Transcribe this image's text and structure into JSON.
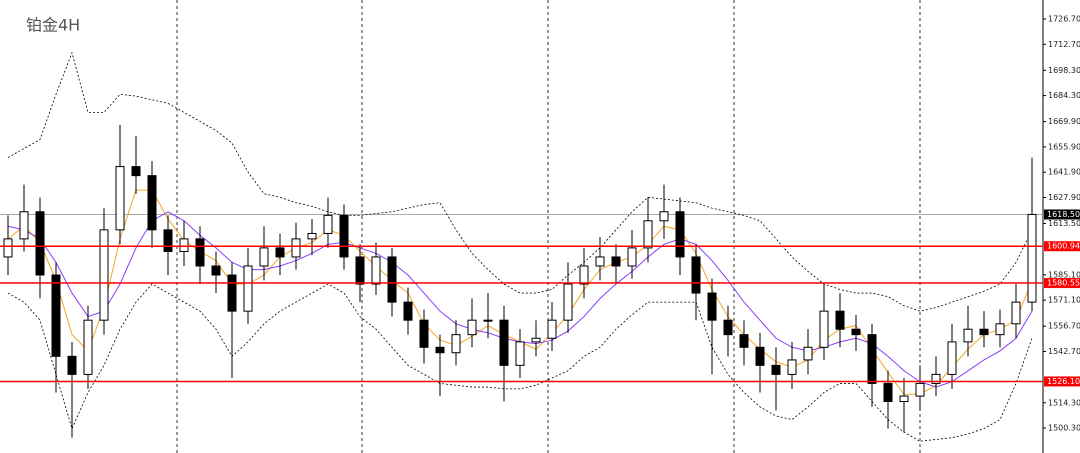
{
  "chart_data": {
    "type": "candlestick",
    "title": "铂金4H",
    "open": [
      1595,
      1605,
      1620,
      1585,
      1540,
      1530,
      1560,
      1610,
      1645,
      1640,
      1610,
      1598,
      1605,
      1590,
      1585,
      1565,
      1590,
      1600,
      1595,
      1605,
      1608,
      1618,
      1595,
      1580,
      1595,
      1570,
      1560,
      1545,
      1542,
      1552,
      1560,
      1560,
      1535,
      1548,
      1550,
      1560,
      1580,
      1590,
      1595,
      1590,
      1600,
      1615,
      1620,
      1595,
      1575,
      1560,
      1552,
      1545,
      1535,
      1530,
      1538,
      1545,
      1565,
      1555,
      1552,
      1525,
      1515,
      1518,
      1525,
      1530,
      1548,
      1555,
      1552,
      1558,
      1570
    ],
    "high": [
      1618,
      1635,
      1628,
      1592,
      1548,
      1568,
      1622,
      1668,
      1662,
      1648,
      1618,
      1615,
      1612,
      1598,
      1592,
      1600,
      1612,
      1608,
      1614,
      1616,
      1628,
      1624,
      1602,
      1603,
      1600,
      1578,
      1566,
      1552,
      1560,
      1572,
      1575,
      1568,
      1555,
      1560,
      1570,
      1592,
      1600,
      1606,
      1602,
      1610,
      1628,
      1635,
      1628,
      1602,
      1583,
      1568,
      1560,
      1553,
      1545,
      1548,
      1555,
      1580,
      1575,
      1563,
      1558,
      1532,
      1528,
      1535,
      1540,
      1558,
      1568,
      1565,
      1566,
      1580,
      1650
    ],
    "low": [
      1585,
      1598,
      1572,
      1520,
      1495,
      1522,
      1552,
      1602,
      1630,
      1600,
      1585,
      1590,
      1580,
      1575,
      1528,
      1558,
      1582,
      1585,
      1588,
      1596,
      1600,
      1588,
      1570,
      1574,
      1562,
      1552,
      1536,
      1518,
      1535,
      1545,
      1550,
      1515,
      1528,
      1540,
      1543,
      1553,
      1572,
      1582,
      1580,
      1583,
      1592,
      1605,
      1585,
      1560,
      1530,
      1540,
      1535,
      1520,
      1510,
      1522,
      1530,
      1538,
      1545,
      1543,
      1512,
      1500,
      1498,
      1510,
      1518,
      1522,
      1540,
      1545,
      1545,
      1550,
      1565
    ],
    "close": [
      1605,
      1620,
      1585,
      1540,
      1530,
      1560,
      1610,
      1645,
      1640,
      1610,
      1598,
      1605,
      1590,
      1585,
      1565,
      1590,
      1600,
      1595,
      1605,
      1608,
      1618,
      1595,
      1580,
      1595,
      1570,
      1560,
      1545,
      1542,
      1552,
      1560,
      1560,
      1535,
      1548,
      1550,
      1560,
      1580,
      1590,
      1595,
      1590,
      1600,
      1615,
      1620,
      1595,
      1575,
      1560,
      1552,
      1545,
      1535,
      1530,
      1538,
      1545,
      1565,
      1555,
      1552,
      1525,
      1515,
      1518,
      1525,
      1530,
      1548,
      1555,
      1552,
      1558,
      1570,
      1618.5
    ],
    "series": [
      {
        "color": "#000000",
        "dashed": true,
        "values": [
          1650,
          1655,
          1660,
          1685,
          1708,
          1675,
          1675,
          1685,
          1684,
          1682,
          1680,
          1675,
          1670,
          1665,
          1658,
          1642,
          1630,
          1628,
          1625,
          1623,
          1620,
          1618,
          1618,
          1619,
          1620,
          1622,
          1624,
          1625,
          1610,
          1597,
          1588,
          1580,
          1575,
          1575,
          1577,
          1585,
          1592,
          1600,
          1610,
          1620,
          1628,
          1627,
          1626,
          1625,
          1622,
          1620,
          1618,
          1615,
          1605,
          1595,
          1587,
          1580,
          1577,
          1575,
          1575,
          1573,
          1568,
          1565,
          1567,
          1570,
          1573,
          1576,
          1580,
          1592,
          1610
        ]
      },
      {
        "color": "#000000",
        "dashed": true,
        "values": [
          1575,
          1570,
          1560,
          1530,
          1500,
          1520,
          1535,
          1555,
          1570,
          1580,
          1575,
          1570,
          1565,
          1555,
          1540,
          1548,
          1558,
          1565,
          1570,
          1575,
          1580,
          1575,
          1562,
          1555,
          1545,
          1535,
          1530,
          1525,
          1524,
          1523,
          1523,
          1522,
          1522,
          1524,
          1528,
          1532,
          1540,
          1545,
          1555,
          1563,
          1570,
          1570,
          1570,
          1570,
          1545,
          1530,
          1520,
          1512,
          1507,
          1505,
          1512,
          1520,
          1525,
          1525,
          1515,
          1505,
          1498,
          1493,
          1494,
          1495,
          1497,
          1500,
          1505,
          1525,
          1550
        ]
      },
      {
        "color": "#f5a623",
        "dashed": false,
        "values": [
          1605,
          1612,
          1603,
          1582,
          1552,
          1543,
          1567,
          1605,
          1632,
          1632,
          1616,
          1604,
          1598,
          1593,
          1580,
          1580,
          1585,
          1595,
          1600,
          1603,
          1610,
          1607,
          1598,
          1590,
          1582,
          1575,
          1558,
          1549,
          1546,
          1551,
          1557,
          1552,
          1548,
          1544,
          1553,
          1563,
          1577,
          1588,
          1592,
          1595,
          1602,
          1612,
          1610,
          1597,
          1577,
          1562,
          1552,
          1544,
          1537,
          1534,
          1538,
          1549,
          1555,
          1557,
          1544,
          1531,
          1519,
          1519,
          1524,
          1534,
          1544,
          1552,
          1555,
          1560,
          1582
        ]
      },
      {
        "color": "#8a3ffc",
        "dashed": false,
        "values": [
          1612,
          1610,
          1605,
          1592,
          1575,
          1562,
          1565,
          1580,
          1600,
          1615,
          1620,
          1615,
          1607,
          1600,
          1592,
          1588,
          1588,
          1590,
          1593,
          1597,
          1602,
          1603,
          1600,
          1597,
          1592,
          1585,
          1575,
          1565,
          1558,
          1555,
          1553,
          1550,
          1548,
          1547,
          1549,
          1554,
          1562,
          1572,
          1580,
          1587,
          1595,
          1602,
          1605,
          1602,
          1593,
          1582,
          1570,
          1560,
          1550,
          1545,
          1543,
          1545,
          1548,
          1550,
          1547,
          1540,
          1532,
          1526,
          1523,
          1526,
          1532,
          1538,
          1543,
          1550,
          1565
        ]
      }
    ],
    "levels": [
      1600.94,
      1580.55,
      {
        "value": 1526.1,
        "label": "1526.10"
      }
    ],
    "level_color": "#ff0000",
    "current_price": {
      "value": 1618.5,
      "label": "1618.50"
    },
    "ylim": [
      1486.5,
      1737.2
    ],
    "yticks": [
      {
        "value": 1726.7,
        "label": "1726.70"
      },
      {
        "value": 1712.7,
        "label": "1712.70"
      },
      {
        "value": 1698.3,
        "label": "1698.30"
      },
      {
        "value": 1684.3,
        "label": "1684.30"
      },
      {
        "value": 1669.9,
        "label": "1669.90"
      },
      {
        "value": 1655.9,
        "label": "1655.90"
      },
      {
        "value": 1641.9,
        "label": "1641.90"
      },
      {
        "value": 1627.9,
        "label": "1627.90"
      },
      {
        "value": 1613.5,
        "label": "1613.50"
      },
      {
        "value": 1585.1,
        "label": "1585.10"
      },
      {
        "value": 1571.1,
        "label": "1571.10"
      },
      {
        "value": 1556.7,
        "label": "1556.70"
      },
      {
        "value": 1542.7,
        "label": "1542.70"
      },
      {
        "value": 1514.3,
        "label": "1514.30"
      },
      {
        "value": 1500.3,
        "label": "1500.30"
      }
    ]
  }
}
